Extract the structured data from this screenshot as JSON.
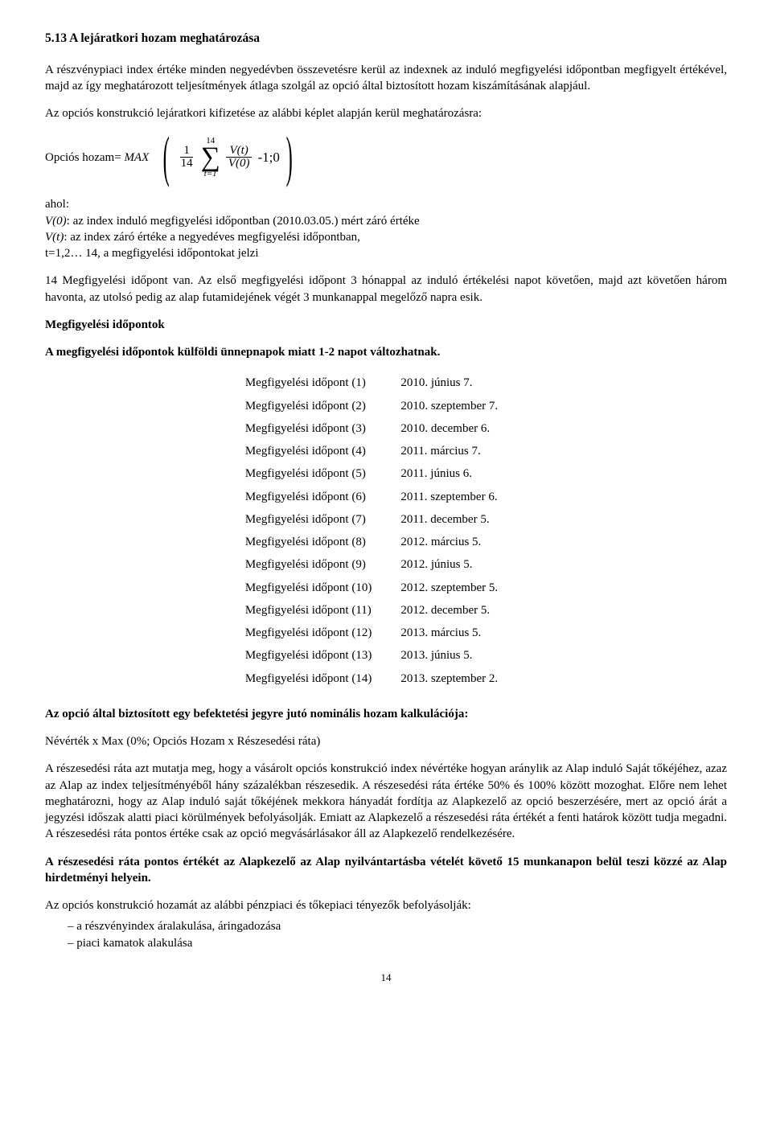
{
  "section_title": "5.13 A lejáratkori hozam meghatározása",
  "para1": "A részvénypiaci index értéke minden negyedévben összevetésre kerül az indexnek az induló megfigyelési időpontban megfigyelt értékével, majd az így meghatározott teljesítmények átlaga szolgál az opció által biztosított hozam kiszámításának alapjául.",
  "para2": "Az opciós konstrukció lejáratkori kifizetése az alábbi képlet alapján kerül meghatározásra:",
  "formula": {
    "label": "Opciós hozam= ",
    "max": "MAX",
    "frac1_num": "1",
    "frac1_den": "14",
    "sigma_top": "14",
    "sigma_sym": "∑",
    "sigma_bot": "t=1",
    "frac2_num": "V(t)",
    "frac2_den": "V(0)",
    "tail": "-1;0"
  },
  "defs_ahol": "ahol:",
  "defs_v0_sym": "V(0)",
  "defs_v0_txt": ": az index induló megfigyelési időpontban (2010.03.05.) mért záró értéke",
  "defs_vt_sym": "V(t)",
  "defs_vt_txt": ": az index záró értéke a negyedéves megfigyelési időpontban,",
  "defs_t": "t=1,2… 14, a megfigyelési időpontokat jelzi",
  "para3": "14 Megfigyelési időpont van. Az első megfigyelési időpont 3 hónappal az induló értékelési napot követően, majd azt követően három havonta, az utolsó pedig az alap futamidejének végét 3 munkanappal megelőző napra esik.",
  "heading_obs": "Megfigyelési időpontok",
  "heading_change": "A megfigyelési időpontok külföldi ünnepnapok miatt 1-2 napot változhatnak.",
  "observations": [
    {
      "label": "Megfigyelési időpont (1)",
      "date": "2010. június 7."
    },
    {
      "label": "Megfigyelési időpont (2)",
      "date": "2010. szeptember 7."
    },
    {
      "label": "Megfigyelési időpont (3)",
      "date": "2010. december 6."
    },
    {
      "label": "Megfigyelési időpont (4)",
      "date": "2011. március 7."
    },
    {
      "label": "Megfigyelési időpont (5)",
      "date": "2011. június 6."
    },
    {
      "label": "Megfigyelési időpont (6)",
      "date": "2011. szeptember 6."
    },
    {
      "label": "Megfigyelési időpont (7)",
      "date": "2011. december 5."
    },
    {
      "label": "Megfigyelési időpont (8)",
      "date": "2012. március 5."
    },
    {
      "label": "Megfigyelési időpont (9)",
      "date": "2012. június 5."
    },
    {
      "label": "Megfigyelési időpont (10)",
      "date": "2012. szeptember 5."
    },
    {
      "label": "Megfigyelési időpont (11)",
      "date": "2012. december 5."
    },
    {
      "label": "Megfigyelési időpont (12)",
      "date": "2013. március 5."
    },
    {
      "label": "Megfigyelési időpont (13)",
      "date": "2013. június 5."
    },
    {
      "label": "Megfigyelési időpont (14)",
      "date": "2013. szeptember 2."
    }
  ],
  "heading_nominal": "Az opció által biztosított egy befektetési jegyre jutó nominális hozam kalkulációja:",
  "nominal_formula": "Névérték x Max (0%; Opciós Hozam x Részesedési ráta)",
  "para4": "A részesedési ráta azt mutatja meg, hogy a vásárolt opciós konstrukció index névértéke hogyan aránylik az Alap induló Saját tőkéjéhez, azaz az Alap az index teljesítményéből hány százalékban részesedik. A részesedési ráta értéke 50% és 100% között mozoghat. Előre nem lehet meghatározni, hogy az Alap induló saját tőkéjének mekkora hányadát fordítja az Alapkezelő az opció beszerzésére, mert az opció árát a jegyzési időszak alatti piaci körülmények befolyásolják. Emiatt az Alapkezelő a részesedési ráta értékét a fenti határok között tudja megadni. A részesedési ráta pontos értéke csak az opció megvásárlásakor áll az Alapkezelő rendelkezésére.",
  "para5_bold": "A részesedési ráta pontos értékét az Alapkezelő az Alap nyilvántartásba vételét követő 15 munkanapon belül teszi közzé az Alap hirdetményi helyein.",
  "para6": "Az opciós konstrukció hozamát az alábbi pénzpiaci és tőkepiaci tényezők befolyásolják:",
  "bullets": [
    "– a részvényindex áralakulása, áringadozása",
    "– piaci kamatok alakulása"
  ],
  "page_number": "14"
}
